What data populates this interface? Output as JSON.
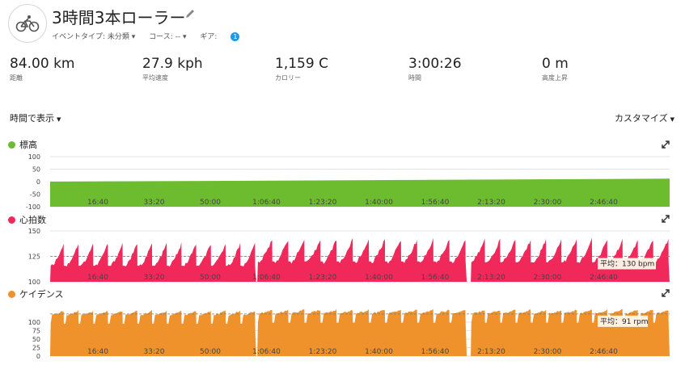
{
  "header": {
    "title": "3時間3本ローラー",
    "event_type": "イベントタイプ: 未分類 ▾",
    "course": "コース: -- ▾",
    "gear_label": "ギア:",
    "gear_count": "1",
    "activity_icon": "bicycle-icon"
  },
  "stats": [
    {
      "value": "84.00 km",
      "label": "距離"
    },
    {
      "value": "27.9 kph",
      "label": "平均速度"
    },
    {
      "value": "1,159 C",
      "label": "カロリー"
    },
    {
      "value": "3:00:26",
      "label": "時間"
    },
    {
      "value": "0 m",
      "label": "高度上昇"
    }
  ],
  "controls": {
    "view_by": "時間で表示",
    "customize": "カスタマイズ"
  },
  "x_ticks": [
    "16:40",
    "33:20",
    "50:00",
    "1:06:40",
    "1:23:20",
    "1:40:00",
    "1:56:40",
    "2:13:20",
    "2:30:00",
    "2:46:40"
  ],
  "colors": {
    "elevation": "#6dbb2f",
    "heart_rate": "#f0295a",
    "cadence": "#f0922b"
  },
  "chart_data": [
    {
      "type": "area",
      "title": "標高",
      "yticks": [
        "100",
        "50",
        "0",
        "-50",
        "-100"
      ],
      "ylim": [
        -100,
        100
      ],
      "x_unit": "seconds",
      "xlim": [
        0,
        10826
      ],
      "x": [
        0,
        10826
      ],
      "values": [
        0,
        12
      ]
    },
    {
      "type": "area",
      "title": "心拍数",
      "yticks": [
        "150",
        "125",
        "100"
      ],
      "ylim": [
        100,
        160
      ],
      "xlim": [
        0,
        10826
      ],
      "average_label": "平均：130 bpm",
      "average": 130,
      "segments": [
        {
          "start": 0,
          "end": 3600,
          "n": 14,
          "base": 118,
          "peak": 145,
          "trough": 119
        },
        {
          "start": 3620,
          "end": 7280,
          "n": 13,
          "base": 122,
          "peak": 150,
          "trough": 124
        },
        {
          "start": 7350,
          "end": 10826,
          "n": 13,
          "base": 123,
          "peak": 150,
          "trough": 123
        }
      ]
    },
    {
      "type": "area",
      "title": "ケイデンス",
      "yticks": [
        "100",
        "75",
        "50",
        "25",
        "0"
      ],
      "ylim": [
        0,
        110
      ],
      "xlim": [
        0,
        10826
      ],
      "average_label": "平均：91 rpm",
      "average": 91,
      "segments": [
        {
          "start": 0,
          "end": 3600,
          "n": 14,
          "base": 88,
          "peak": 98,
          "trough": 70
        },
        {
          "start": 3620,
          "end": 7280,
          "n": 13,
          "base": 92,
          "peak": 100,
          "trough": 72
        },
        {
          "start": 7350,
          "end": 10826,
          "n": 13,
          "base": 92,
          "peak": 100,
          "trough": 72
        }
      ]
    }
  ]
}
